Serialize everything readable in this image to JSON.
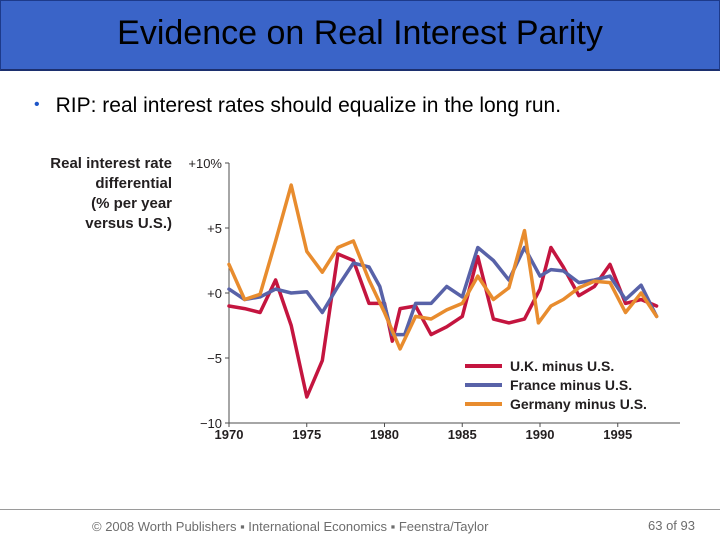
{
  "slide": {
    "title": "Evidence on Real Interest Parity",
    "bullet": "RIP: real interest rates should equalize in the long run.",
    "footer": "© 2008 Worth Publishers ▪ International Economics ▪ Feenstra/Taylor",
    "page": "63 of 93"
  },
  "chart_data": {
    "type": "line",
    "ylabel_lines": [
      "Real interest rate",
      "differential",
      "(% per year",
      "versus U.S.)"
    ],
    "ylim": [
      -10,
      10
    ],
    "xlim": [
      1970,
      1998
    ],
    "y_ticks": [
      {
        "value": 10,
        "label": "+10%"
      },
      {
        "value": 5,
        "label": "+5"
      },
      {
        "value": 0,
        "label": "+0"
      },
      {
        "value": -5,
        "label": "−5"
      },
      {
        "value": -10,
        "label": "−10"
      }
    ],
    "x_ticks": [
      {
        "value": 1970,
        "label": "1970"
      },
      {
        "value": 1975,
        "label": "1975"
      },
      {
        "value": 1980,
        "label": "1980"
      },
      {
        "value": 1985,
        "label": "1985"
      },
      {
        "value": 1990,
        "label": "1990"
      },
      {
        "value": 1995,
        "label": "1995"
      }
    ],
    "legend_position": "bottom-right",
    "grid": false,
    "series": [
      {
        "name": "U.K. minus U.S.",
        "color": "#c4153f",
        "points": [
          [
            1970,
            -1
          ],
          [
            1971,
            -1.2
          ],
          [
            1972,
            -1.5
          ],
          [
            1973,
            1
          ],
          [
            1974,
            -2.5
          ],
          [
            1975,
            -8
          ],
          [
            1976,
            -5.2
          ],
          [
            1977,
            3
          ],
          [
            1978,
            2.5
          ],
          [
            1979,
            -0.8
          ],
          [
            1980,
            -0.8
          ],
          [
            1980.5,
            -3.7
          ],
          [
            1981,
            -1.2
          ],
          [
            1982,
            -1
          ],
          [
            1983,
            -3.2
          ],
          [
            1984,
            -2.6
          ],
          [
            1985,
            -1.8
          ],
          [
            1986,
            2.8
          ],
          [
            1987,
            -2
          ],
          [
            1988,
            -2.3
          ],
          [
            1989,
            -2
          ],
          [
            1990,
            0.3
          ],
          [
            1990.7,
            3.5
          ],
          [
            1991.5,
            2
          ],
          [
            1992.5,
            -0.2
          ],
          [
            1993.5,
            0.5
          ],
          [
            1994.5,
            2.2
          ],
          [
            1995.5,
            -0.8
          ],
          [
            1996.5,
            -0.5
          ],
          [
            1997.5,
            -1
          ]
        ]
      },
      {
        "name": "France minus U.S.",
        "color": "#5862a8",
        "points": [
          [
            1970,
            0.3
          ],
          [
            1971,
            -0.5
          ],
          [
            1972,
            -0.3
          ],
          [
            1973,
            0.3
          ],
          [
            1974,
            0
          ],
          [
            1975,
            0.1
          ],
          [
            1976,
            -1.5
          ],
          [
            1977,
            0.5
          ],
          [
            1978,
            2.3
          ],
          [
            1979,
            2
          ],
          [
            1979.7,
            0.5
          ],
          [
            1980.5,
            -3.2
          ],
          [
            1981.3,
            -3.2
          ],
          [
            1982,
            -0.8
          ],
          [
            1983,
            -0.8
          ],
          [
            1984,
            0.5
          ],
          [
            1985,
            -0.3
          ],
          [
            1986,
            3.5
          ],
          [
            1987,
            2.5
          ],
          [
            1988,
            1
          ],
          [
            1989,
            3.5
          ],
          [
            1990,
            1.3
          ],
          [
            1990.7,
            1.8
          ],
          [
            1991.5,
            1.7
          ],
          [
            1992.5,
            0.8
          ],
          [
            1993.5,
            1
          ],
          [
            1994.5,
            1.3
          ],
          [
            1995.5,
            -0.5
          ],
          [
            1996.5,
            0.6
          ],
          [
            1997.5,
            -1.8
          ]
        ]
      },
      {
        "name": "Germany minus U.S.",
        "color": "#e88c2e",
        "points": [
          [
            1970,
            2.2
          ],
          [
            1971,
            -0.5
          ],
          [
            1972,
            -0.1
          ],
          [
            1973,
            4
          ],
          [
            1974,
            8.3
          ],
          [
            1975,
            3.2
          ],
          [
            1976,
            1.6
          ],
          [
            1977,
            3.5
          ],
          [
            1978,
            4
          ],
          [
            1979,
            1
          ],
          [
            1980,
            -1.5
          ],
          [
            1981,
            -4.3
          ],
          [
            1982,
            -1.8
          ],
          [
            1983,
            -2
          ],
          [
            1984,
            -1.3
          ],
          [
            1985,
            -0.8
          ],
          [
            1986,
            1.3
          ],
          [
            1987,
            -0.5
          ],
          [
            1988,
            0.4
          ],
          [
            1989,
            4.8
          ],
          [
            1989.9,
            -2.3
          ],
          [
            1990.7,
            -1
          ],
          [
            1991.5,
            -0.5
          ],
          [
            1992.5,
            0.4
          ],
          [
            1993.5,
            0.9
          ],
          [
            1994.5,
            0.8
          ],
          [
            1995.5,
            -1.5
          ],
          [
            1996.5,
            0
          ],
          [
            1997.5,
            -1.8
          ]
        ]
      }
    ]
  }
}
